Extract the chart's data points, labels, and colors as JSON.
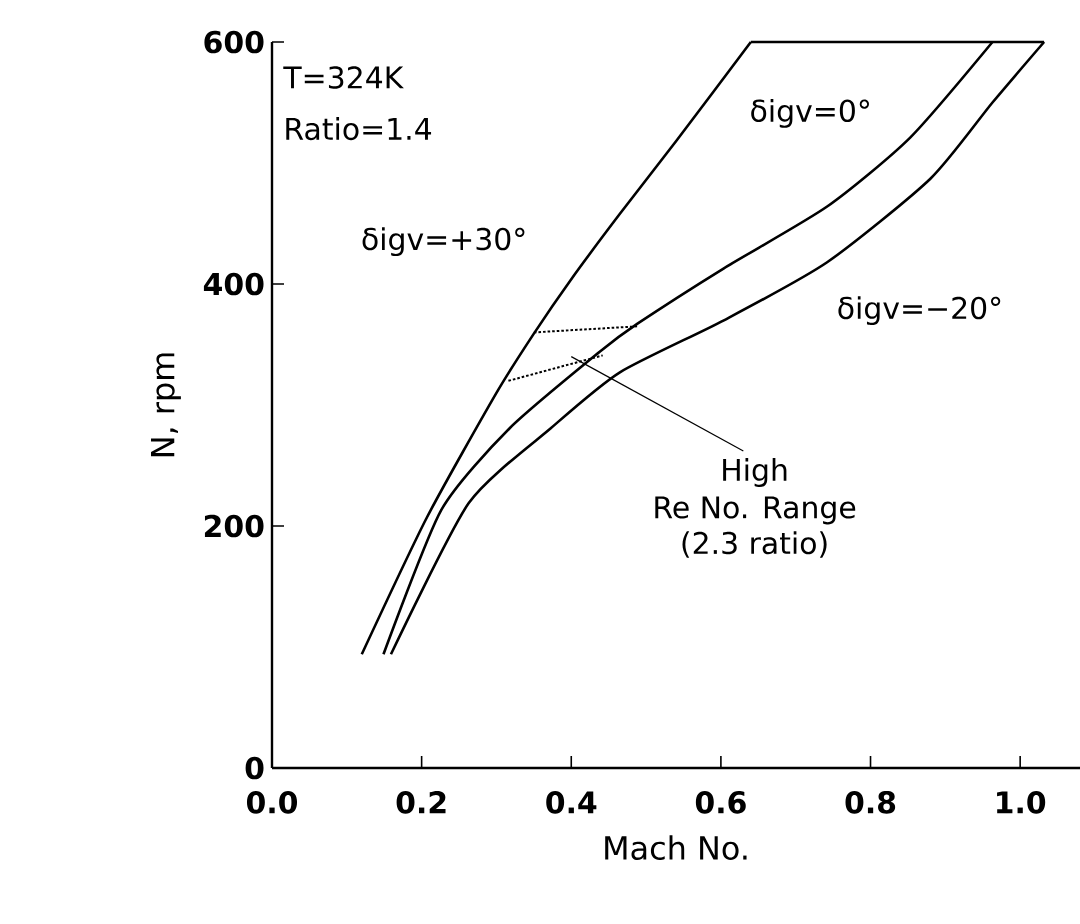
{
  "chart_data": {
    "type": "line",
    "xlabel": "Mach No.",
    "ylabel": "N, rpm",
    "xlim": [
      0,
      1.08
    ],
    "ylim": [
      0,
      600
    ],
    "xticks": [
      {
        "value": 0,
        "label": "0.0"
      },
      {
        "value": 0.2,
        "label": "0.2"
      },
      {
        "value": 0.4,
        "label": "0.4"
      },
      {
        "value": 0.6,
        "label": "0.6"
      },
      {
        "value": 0.8,
        "label": "0.8"
      },
      {
        "value": 1.0,
        "label": "1.0"
      }
    ],
    "yticks": [
      0,
      200,
      400,
      600
    ],
    "grid": false,
    "line_style": "solid",
    "series": [
      {
        "name": "δigv=+30°",
        "color": "#000000",
        "x": [
          0.12,
          0.207,
          0.3,
          0.35,
          0.4,
          0.465,
          0.54,
          0.64
        ],
        "values": [
          94,
          207,
          310,
          359,
          404,
          458,
          518,
          600
        ]
      },
      {
        "name": "δigv=0°",
        "color": "#000000",
        "x": [
          0.149,
          0.226,
          0.318,
          0.438,
          0.488,
          0.604,
          0.742,
          0.853,
          0.963
        ],
        "values": [
          94,
          213,
          281,
          344,
          367,
          413,
          464,
          521,
          600
        ]
      },
      {
        "name": "δigv=−20°",
        "color": "#000000",
        "x": [
          0.159,
          0.263,
          0.373,
          0.465,
          0.604,
          0.742,
          0.88,
          0.963,
          1.032
        ],
        "values": [
          94,
          219,
          281,
          327,
          370,
          418,
          487,
          550,
          600
        ]
      },
      {
        "color": "#000000",
        "x": [
          0.64,
          1.032
        ],
        "values": [
          600,
          600
        ]
      },
      {
        "color": "#000000",
        "line_style": "dotted",
        "x": [
          0.35,
          0.488
        ],
        "values": [
          360,
          365
        ]
      },
      {
        "color": "#000000",
        "line_style": "dotted",
        "x": [
          0.316,
          0.442
        ],
        "values": [
          320,
          341
        ]
      }
    ],
    "annotations": [
      "T=324K",
      "Ratio=1.4",
      {
        "text": "High",
        "x": 0.4,
        "y": 340
      },
      "Re No. Range",
      "(2.3 ratio)"
    ]
  }
}
